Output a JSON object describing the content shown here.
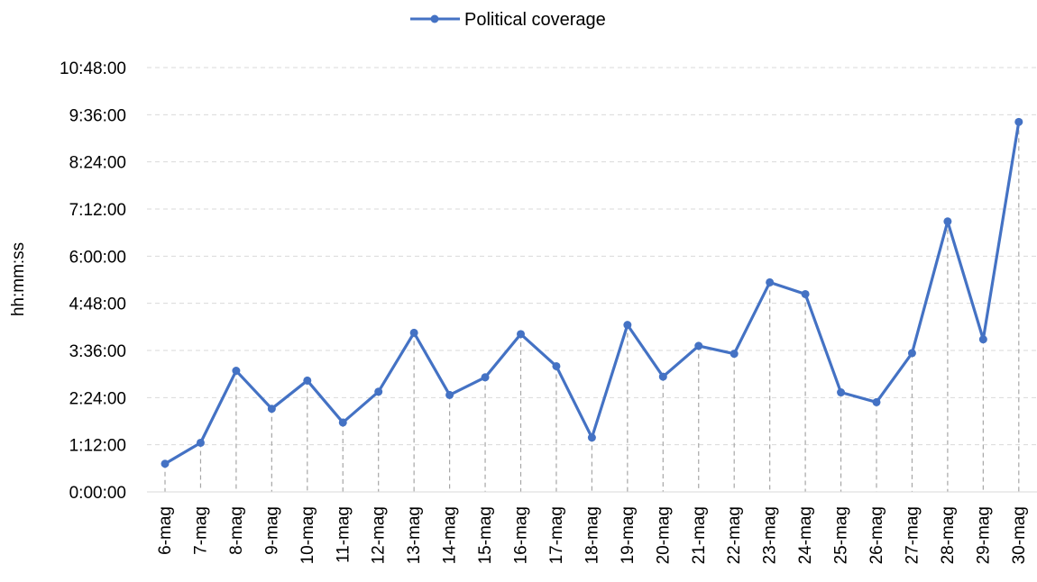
{
  "chart_data": {
    "type": "line",
    "legend": {
      "label": "Political coverage",
      "position": "top"
    },
    "ylabel": "hh:mm:ss",
    "xlabel": "",
    "title": "",
    "categories": [
      "6-mag",
      "7-mag",
      "8-mag",
      "9-mag",
      "10-mag",
      "11-mag",
      "12-mag",
      "13-mag",
      "14-mag",
      "15-mag",
      "16-mag",
      "17-mag",
      "18-mag",
      "19-mag",
      "20-mag",
      "21-mag",
      "22-mag",
      "23-mag",
      "24-mag",
      "25-mag",
      "26-mag",
      "27-mag",
      "28-mag",
      "29-mag",
      "30-mag"
    ],
    "y_ticks": [
      "0:00:00",
      "1:12:00",
      "2:24:00",
      "3:36:00",
      "4:48:00",
      "6:00:00",
      "7:12:00",
      "8:24:00",
      "9:36:00",
      "10:48:00"
    ],
    "ylim_seconds": [
      0,
      38880
    ],
    "series": [
      {
        "name": "Political coverage",
        "color": "#4472C4",
        "values_hms": [
          "0:43:00",
          "1:15:00",
          "3:05:00",
          "2:07:00",
          "2:50:00",
          "1:46:00",
          "2:33:00",
          "4:03:00",
          "2:28:00",
          "2:55:00",
          "4:01:00",
          "3:12:00",
          "1:23:00",
          "4:15:00",
          "2:56:00",
          "3:43:00",
          "3:31:00",
          "5:20:00",
          "5:02:00",
          "2:32:00",
          "2:17:00",
          "3:32:00",
          "6:53:00",
          "3:53:00",
          "9:25:00"
        ],
        "values_seconds": [
          2580,
          4500,
          11100,
          7620,
          10200,
          6360,
          9180,
          14580,
          8880,
          10500,
          14460,
          11520,
          4980,
          15300,
          10560,
          13380,
          12660,
          19200,
          18120,
          9120,
          8220,
          12720,
          24780,
          13980,
          33900
        ]
      }
    ],
    "grid": {
      "horizontal": true,
      "style": "dashed"
    },
    "drop_lines": true
  }
}
